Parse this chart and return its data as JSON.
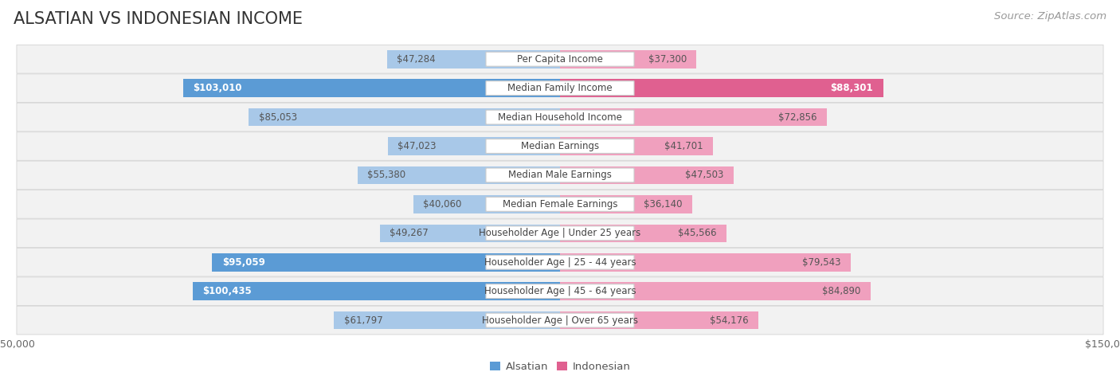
{
  "title": "ALSATIAN VS INDONESIAN INCOME",
  "source": "Source: ZipAtlas.com",
  "categories": [
    "Per Capita Income",
    "Median Family Income",
    "Median Household Income",
    "Median Earnings",
    "Median Male Earnings",
    "Median Female Earnings",
    "Householder Age | Under 25 years",
    "Householder Age | 25 - 44 years",
    "Householder Age | 45 - 64 years",
    "Householder Age | Over 65 years"
  ],
  "alsatian": [
    47284,
    103010,
    85053,
    47023,
    55380,
    40060,
    49267,
    95059,
    100435,
    61797
  ],
  "indonesian": [
    37300,
    88301,
    72856,
    41701,
    47503,
    36140,
    45566,
    79543,
    84890,
    54176
  ],
  "max_val": 150000,
  "alsatian_color_light": "#a8c8e8",
  "alsatian_color_dark": "#5b9bd5",
  "indonesian_color_light": "#f0a0be",
  "indonesian_color_dark": "#e06090",
  "row_bg_color": "#f2f2f2",
  "row_border_color": "#d8d8d8",
  "label_bg_color": "#ffffff",
  "label_border_color": "#cccccc",
  "title_fontsize": 15,
  "source_fontsize": 9.5,
  "value_fontsize": 8.5,
  "label_fontsize": 8.5,
  "axis_fontsize": 9,
  "dark_threshold_als": 90000,
  "dark_threshold_indo": 85000
}
